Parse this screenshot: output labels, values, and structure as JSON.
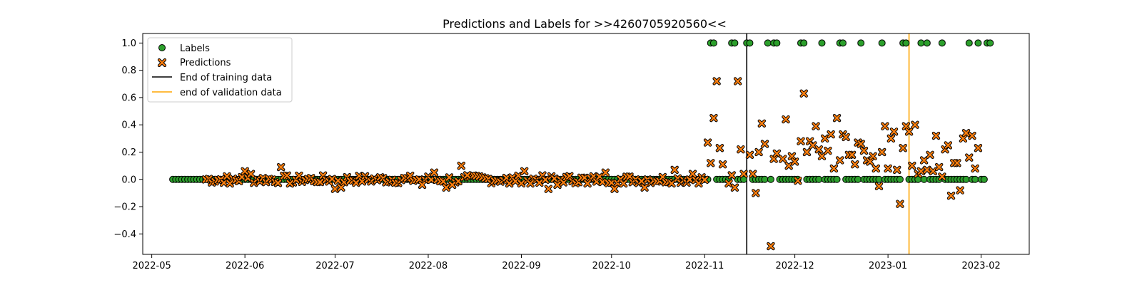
{
  "chart_data": {
    "type": "scatter",
    "title": "Predictions and Labels for >>4260705920560<<",
    "xlabel": "",
    "ylabel": "",
    "ylim": [
      -0.55,
      1.07
    ],
    "xlim": [
      "2022-04-28",
      "2023-02-17"
    ],
    "x_ticks": [
      "2022-05",
      "2022-06",
      "2022-07",
      "2022-08",
      "2022-09",
      "2022-10",
      "2022-11",
      "2022-12",
      "2023-01",
      "2023-02"
    ],
    "y_ticks": [
      -0.4,
      -0.2,
      0.0,
      0.2,
      0.4,
      0.6,
      0.8,
      1.0
    ],
    "y_tick_labels": [
      "−0.4",
      "−0.2",
      "0.0",
      "0.2",
      "0.4",
      "0.6",
      "0.8",
      "1.0"
    ],
    "grid": false,
    "legend_position": "upper-left",
    "colors": {
      "labels": "#2ca02c",
      "predictions": "#ff7f0e",
      "training_line": "#000000",
      "validation_line": "#ffa500"
    },
    "series": [
      {
        "name": "Labels",
        "marker": "circle",
        "points": [
          [
            "2022-11-03",
            1
          ],
          [
            "2022-11-04",
            1
          ],
          [
            "2022-11-10",
            1
          ],
          [
            "2022-11-11",
            1
          ],
          [
            "2022-11-15",
            1
          ],
          [
            "2022-11-16",
            1
          ],
          [
            "2022-11-22",
            1
          ],
          [
            "2022-11-24",
            1
          ],
          [
            "2022-11-25",
            1
          ],
          [
            "2022-12-03",
            1
          ],
          [
            "2022-12-04",
            1
          ],
          [
            "2022-12-10",
            1
          ],
          [
            "2022-12-16",
            1
          ],
          [
            "2022-12-17",
            1
          ],
          [
            "2022-12-23",
            1
          ],
          [
            "2022-12-30",
            1
          ],
          [
            "2023-01-06",
            1
          ],
          [
            "2023-01-07",
            1
          ],
          [
            "2023-01-12",
            1
          ],
          [
            "2023-01-14",
            1
          ],
          [
            "2023-01-19",
            1
          ],
          [
            "2023-01-28",
            1
          ],
          [
            "2023-01-31",
            1
          ],
          [
            "2023-02-03",
            1
          ],
          [
            "2023-02-04",
            1
          ]
        ],
        "zero_value_dates": {
          "start": "2022-05-08",
          "end": "2023-02-03"
        }
      },
      {
        "name": "Predictions",
        "marker": "x",
        "points": [
          [
            "2022-05-27",
            -0.03
          ],
          [
            "2022-06-01",
            0.06
          ],
          [
            "2022-06-03",
            0.04
          ],
          [
            "2022-06-13",
            0.09
          ],
          [
            "2022-06-16",
            -0.03
          ],
          [
            "2022-06-26",
            -0.02
          ],
          [
            "2022-07-01",
            -0.07
          ],
          [
            "2022-07-03",
            -0.06
          ],
          [
            "2022-07-30",
            -0.04
          ],
          [
            "2022-08-03",
            0.05
          ],
          [
            "2022-08-07",
            -0.06
          ],
          [
            "2022-08-09",
            -0.04
          ],
          [
            "2022-08-12",
            0.1
          ],
          [
            "2022-08-14",
            0.03
          ],
          [
            "2022-08-28",
            -0.03
          ],
          [
            "2022-09-02",
            0.06
          ],
          [
            "2022-09-04",
            -0.03
          ],
          [
            "2022-09-10",
            -0.07
          ],
          [
            "2022-09-13",
            -0.04
          ],
          [
            "2022-09-23",
            -0.03
          ],
          [
            "2022-09-29",
            0.05
          ],
          [
            "2022-10-02",
            -0.07
          ],
          [
            "2022-10-05",
            -0.03
          ],
          [
            "2022-10-12",
            -0.06
          ],
          [
            "2022-10-22",
            0.07
          ],
          [
            "2022-10-28",
            0.04
          ],
          [
            "2022-11-02",
            0.27
          ],
          [
            "2022-11-03",
            0.12
          ],
          [
            "2022-11-04",
            0.45
          ],
          [
            "2022-11-05",
            0.72
          ],
          [
            "2022-11-06",
            0.23
          ],
          [
            "2022-11-07",
            0.11
          ],
          [
            "2022-11-09",
            -0.03
          ],
          [
            "2022-11-10",
            0.03
          ],
          [
            "2022-11-11",
            -0.06
          ],
          [
            "2022-11-12",
            0.72
          ],
          [
            "2022-11-13",
            0.22
          ],
          [
            "2022-11-14",
            0.04
          ],
          [
            "2022-11-16",
            0.18
          ],
          [
            "2022-11-17",
            0.04
          ],
          [
            "2022-11-18",
            -0.1
          ],
          [
            "2022-11-19",
            0.2
          ],
          [
            "2022-11-20",
            0.41
          ],
          [
            "2022-11-21",
            0.26
          ],
          [
            "2022-11-23",
            -0.49
          ],
          [
            "2022-11-24",
            0.15
          ],
          [
            "2022-11-25",
            0.19
          ],
          [
            "2022-11-27",
            0.15
          ],
          [
            "2022-11-28",
            0.44
          ],
          [
            "2022-11-29",
            0.1
          ],
          [
            "2022-11-30",
            0.17
          ],
          [
            "2022-12-01",
            0.13
          ],
          [
            "2022-12-02",
            -0.01
          ],
          [
            "2022-12-03",
            0.28
          ],
          [
            "2022-12-04",
            0.63
          ],
          [
            "2022-12-05",
            0.2
          ],
          [
            "2022-12-06",
            0.28
          ],
          [
            "2022-12-07",
            0.25
          ],
          [
            "2022-12-08",
            0.39
          ],
          [
            "2022-12-09",
            0.22
          ],
          [
            "2022-12-10",
            0.17
          ],
          [
            "2022-12-11",
            0.3
          ],
          [
            "2022-12-12",
            0.21
          ],
          [
            "2022-12-13",
            0.33
          ],
          [
            "2022-12-14",
            0.08
          ],
          [
            "2022-12-15",
            0.45
          ],
          [
            "2022-12-16",
            0.14
          ],
          [
            "2022-12-17",
            0.33
          ],
          [
            "2022-12-18",
            0.31
          ],
          [
            "2022-12-19",
            0.18
          ],
          [
            "2022-12-20",
            0.18
          ],
          [
            "2022-12-21",
            0.11
          ],
          [
            "2022-12-22",
            0.27
          ],
          [
            "2022-12-23",
            0.26
          ],
          [
            "2022-12-24",
            0.21
          ],
          [
            "2022-12-25",
            0.14
          ],
          [
            "2022-12-26",
            0.13
          ],
          [
            "2022-12-27",
            0.17
          ],
          [
            "2022-12-28",
            0.08
          ],
          [
            "2022-12-29",
            -0.05
          ],
          [
            "2022-12-30",
            0.2
          ],
          [
            "2022-12-31",
            0.39
          ],
          [
            "2023-01-01",
            0.08
          ],
          [
            "2023-01-02",
            0.3
          ],
          [
            "2023-01-03",
            0.35
          ],
          [
            "2023-01-04",
            0.07
          ],
          [
            "2023-01-05",
            -0.18
          ],
          [
            "2023-01-06",
            0.23
          ],
          [
            "2023-01-07",
            0.39
          ],
          [
            "2023-01-08",
            0.35
          ],
          [
            "2023-01-09",
            0.1
          ],
          [
            "2023-01-10",
            0.4
          ],
          [
            "2023-01-11",
            0.04
          ],
          [
            "2023-01-12",
            0.06
          ],
          [
            "2023-01-13",
            0.14
          ],
          [
            "2023-01-14",
            0.07
          ],
          [
            "2023-01-15",
            0.18
          ],
          [
            "2023-01-16",
            0.06
          ],
          [
            "2023-01-17",
            0.32
          ],
          [
            "2023-01-18",
            0.09
          ],
          [
            "2023-01-19",
            0.02
          ],
          [
            "2023-01-20",
            0.22
          ],
          [
            "2023-01-21",
            0.25
          ],
          [
            "2023-01-22",
            -0.12
          ],
          [
            "2023-01-23",
            0.12
          ],
          [
            "2023-01-24",
            0.12
          ],
          [
            "2023-01-25",
            -0.08
          ],
          [
            "2023-01-26",
            0.3
          ],
          [
            "2023-01-27",
            0.34
          ],
          [
            "2023-01-28",
            0.16
          ],
          [
            "2023-01-29",
            0.32
          ],
          [
            "2023-01-30",
            0.08
          ],
          [
            "2023-01-31",
            0.23
          ]
        ],
        "near_zero_dates": {
          "start": "2022-05-19",
          "end": "2022-11-02",
          "amplitude": 0.03
        }
      }
    ],
    "vlines": [
      {
        "name": "End of training data",
        "x": "2022-11-15",
        "color": "#000000"
      },
      {
        "name": "end of validation data",
        "x": "2023-01-08",
        "color": "#ffa500"
      }
    ],
    "legend": [
      "Labels",
      "Predictions",
      "End of training data",
      "end of validation data"
    ]
  }
}
